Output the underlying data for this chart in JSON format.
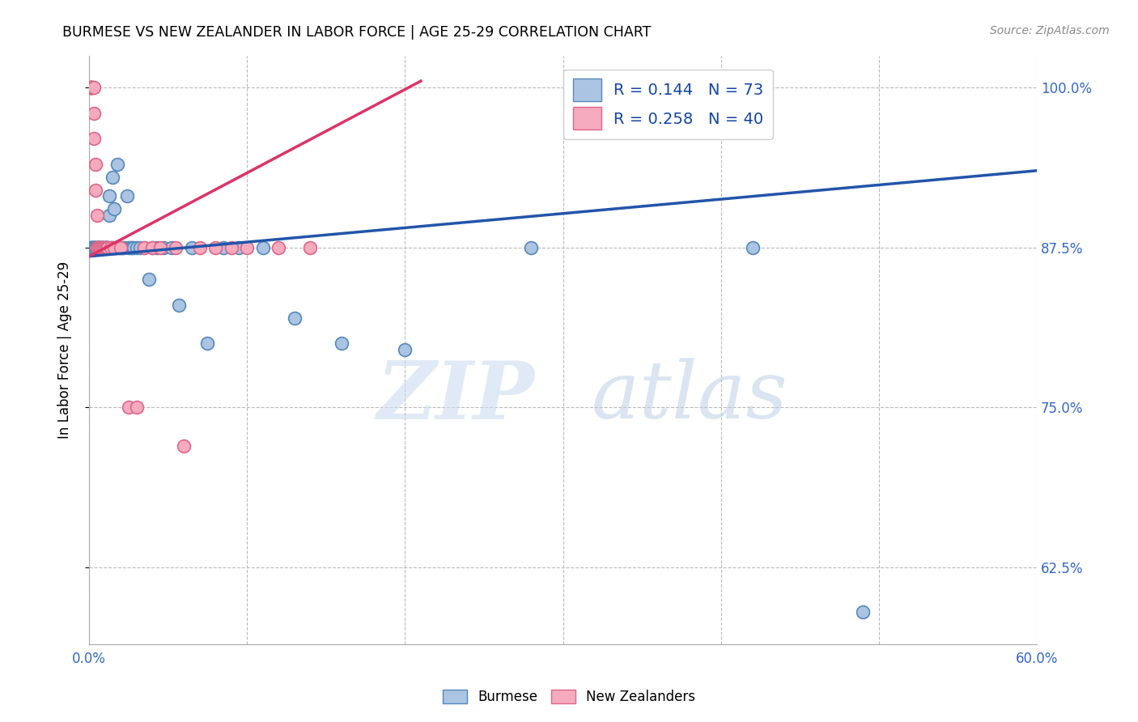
{
  "title": "BURMESE VS NEW ZEALANDER IN LABOR FORCE | AGE 25-29 CORRELATION CHART",
  "source": "Source: ZipAtlas.com",
  "ylabel": "In Labor Force | Age 25-29",
  "x_min": 0.0,
  "x_max": 0.6,
  "y_min": 0.565,
  "y_max": 1.025,
  "x_tick_positions": [
    0.0,
    0.1,
    0.2,
    0.3,
    0.4,
    0.5,
    0.6
  ],
  "x_tick_labels": [
    "0.0%",
    "",
    "",
    "",
    "",
    "",
    "60.0%"
  ],
  "y_tick_positions": [
    0.625,
    0.75,
    0.875,
    1.0
  ],
  "y_tick_labels": [
    "62.5%",
    "75.0%",
    "87.5%",
    "100.0%"
  ],
  "burmese_color": "#aac4e2",
  "burmese_edge": "#5588bb",
  "burmese_line_color": "#2255aa",
  "nz_color": "#f5aabe",
  "nz_edge": "#dd6688",
  "nz_line_color": "#dd3366",
  "legend_label_1": "R = 0.144   N = 73",
  "legend_label_2": "R = 0.258   N = 40",
  "watermark_zip": "ZIP",
  "watermark_atlas": "atlas",
  "burmese_trend_x": [
    0.0,
    0.6
  ],
  "burmese_trend_y": [
    0.868,
    0.935
  ],
  "nz_trend_x": [
    0.0,
    0.21
  ],
  "nz_trend_y": [
    0.868,
    1.005
  ],
  "burmese_x": [
    0.001,
    0.001,
    0.001,
    0.002,
    0.002,
    0.002,
    0.002,
    0.003,
    0.003,
    0.003,
    0.003,
    0.004,
    0.004,
    0.004,
    0.004,
    0.005,
    0.005,
    0.005,
    0.006,
    0.006,
    0.006,
    0.006,
    0.007,
    0.007,
    0.008,
    0.008,
    0.008,
    0.009,
    0.009,
    0.01,
    0.01,
    0.01,
    0.011,
    0.011,
    0.012,
    0.012,
    0.013,
    0.013,
    0.014,
    0.015,
    0.015,
    0.016,
    0.017,
    0.018,
    0.019,
    0.02,
    0.021,
    0.022,
    0.024,
    0.025,
    0.026,
    0.027,
    0.028,
    0.03,
    0.032,
    0.035,
    0.038,
    0.04,
    0.043,
    0.047,
    0.052,
    0.057,
    0.065,
    0.075,
    0.085,
    0.095,
    0.11,
    0.13,
    0.16,
    0.2,
    0.28,
    0.42,
    0.49
  ],
  "burmese_y": [
    0.875,
    0.875,
    0.875,
    0.875,
    0.875,
    0.875,
    0.875,
    0.875,
    0.875,
    0.875,
    0.875,
    0.875,
    0.875,
    0.875,
    0.875,
    0.875,
    0.875,
    0.875,
    0.875,
    0.875,
    0.875,
    0.875,
    0.875,
    0.875,
    0.875,
    0.875,
    0.875,
    0.875,
    0.875,
    0.875,
    0.875,
    0.875,
    0.875,
    0.875,
    0.875,
    0.875,
    0.9,
    0.915,
    0.875,
    0.93,
    0.875,
    0.905,
    0.875,
    0.94,
    0.875,
    0.875,
    0.875,
    0.875,
    0.915,
    0.875,
    0.875,
    0.875,
    0.875,
    0.875,
    0.875,
    0.875,
    0.85,
    0.875,
    0.875,
    0.875,
    0.875,
    0.83,
    0.875,
    0.8,
    0.875,
    0.875,
    0.875,
    0.82,
    0.8,
    0.795,
    0.875,
    0.875,
    0.59
  ],
  "nz_x": [
    0.001,
    0.001,
    0.001,
    0.001,
    0.001,
    0.002,
    0.002,
    0.002,
    0.003,
    0.003,
    0.003,
    0.004,
    0.004,
    0.005,
    0.005,
    0.006,
    0.006,
    0.007,
    0.007,
    0.008,
    0.009,
    0.01,
    0.011,
    0.012,
    0.014,
    0.016,
    0.02,
    0.025,
    0.03,
    0.035,
    0.04,
    0.045,
    0.055,
    0.06,
    0.07,
    0.08,
    0.09,
    0.1,
    0.12,
    0.14
  ],
  "nz_y": [
    1.0,
    1.0,
    1.0,
    1.0,
    1.0,
    1.0,
    1.0,
    1.0,
    1.0,
    0.98,
    0.96,
    0.94,
    0.92,
    0.9,
    0.875,
    0.875,
    0.875,
    0.875,
    0.875,
    0.875,
    0.875,
    0.875,
    0.875,
    0.875,
    0.875,
    0.875,
    0.875,
    0.75,
    0.75,
    0.875,
    0.875,
    0.875,
    0.875,
    0.72,
    0.875,
    0.875,
    0.875,
    0.875,
    0.875,
    0.875
  ]
}
